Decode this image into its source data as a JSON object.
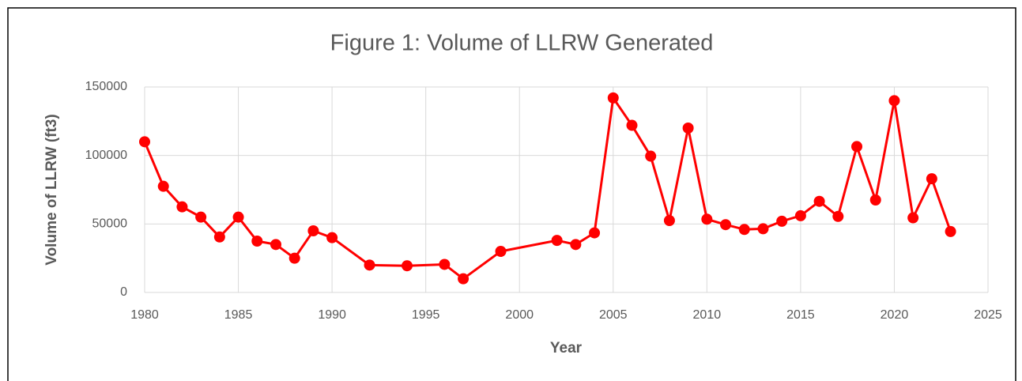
{
  "chart_data": {
    "type": "line",
    "title": "Figure 1: Volume of LLRW Generated",
    "x_label": "Year",
    "y_label": "Volume of LLRW (ft3)",
    "x": [
      1980,
      1981,
      1982,
      1983,
      1984,
      1985,
      1986,
      1987,
      1988,
      1989,
      1990,
      1992,
      1994,
      1996,
      1997,
      1999,
      2002,
      2003,
      2004,
      2005,
      2006,
      2007,
      2008,
      2009,
      2010,
      2011,
      2012,
      2013,
      2014,
      2015,
      2016,
      2017,
      2018,
      2019,
      2020,
      2021,
      2022,
      2023
    ],
    "series": [
      {
        "name": "Volume",
        "color": "#ff0000",
        "values": [
          110000,
          77500,
          62500,
          55000,
          40500,
          55000,
          37500,
          35000,
          25000,
          45000,
          40000,
          20000,
          19500,
          20500,
          10000,
          30000,
          38000,
          35000,
          43500,
          142000,
          122000,
          99500,
          52500,
          120000,
          53500,
          49500,
          46000,
          46500,
          52000,
          56000,
          66500,
          55500,
          106500,
          67500,
          140000,
          54500,
          83000,
          44500
        ]
      }
    ],
    "xlim": [
      1980,
      2025
    ],
    "xticks": [
      1980,
      1985,
      1990,
      1995,
      2000,
      2005,
      2010,
      2015,
      2020,
      2025
    ],
    "ylim": [
      0,
      150000
    ],
    "yticks": [
      0,
      50000,
      100000,
      150000
    ],
    "grid": true
  }
}
